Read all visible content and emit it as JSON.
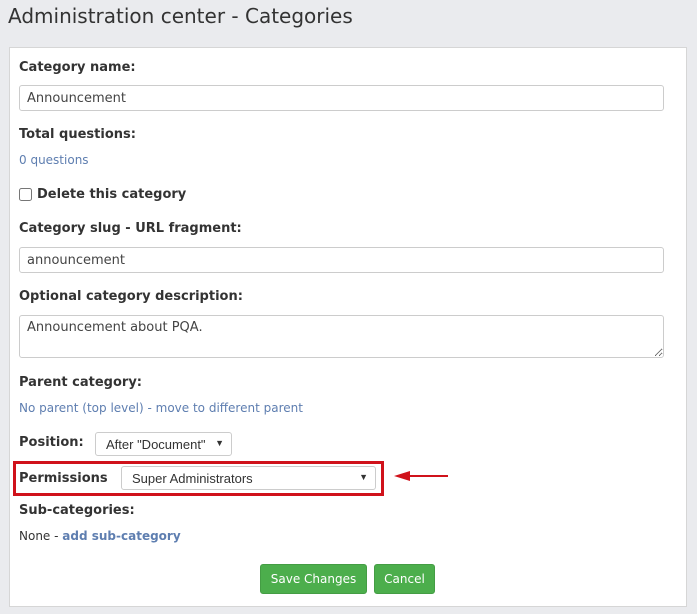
{
  "title": "Administration center - Categories",
  "form": {
    "name_label": "Category name:",
    "name_value": "Announcement",
    "total_label": "Total questions:",
    "total_link": "0 questions",
    "delete_label": "Delete this category",
    "slug_label": "Category slug - URL fragment:",
    "slug_value": "announcement",
    "desc_label": "Optional category description:",
    "desc_value": "Announcement about PQA.",
    "parent_label": "Parent category:",
    "parent_value": "No parent (top level)",
    "parent_sep": " - ",
    "parent_link": "move to different parent",
    "position_label": "Position:",
    "position_value": "After \"Document\"",
    "permissions_label": "Permissions",
    "permissions_value": "Super Administrators",
    "sub_label": "Sub-categories:",
    "sub_value": "None",
    "sub_sep": " - ",
    "sub_link": "add sub-category",
    "save": "Save Changes",
    "cancel": "Cancel"
  },
  "colors": {
    "highlight": "#d0121b",
    "button": "#4cae4c",
    "link": "#5e7eb0"
  }
}
